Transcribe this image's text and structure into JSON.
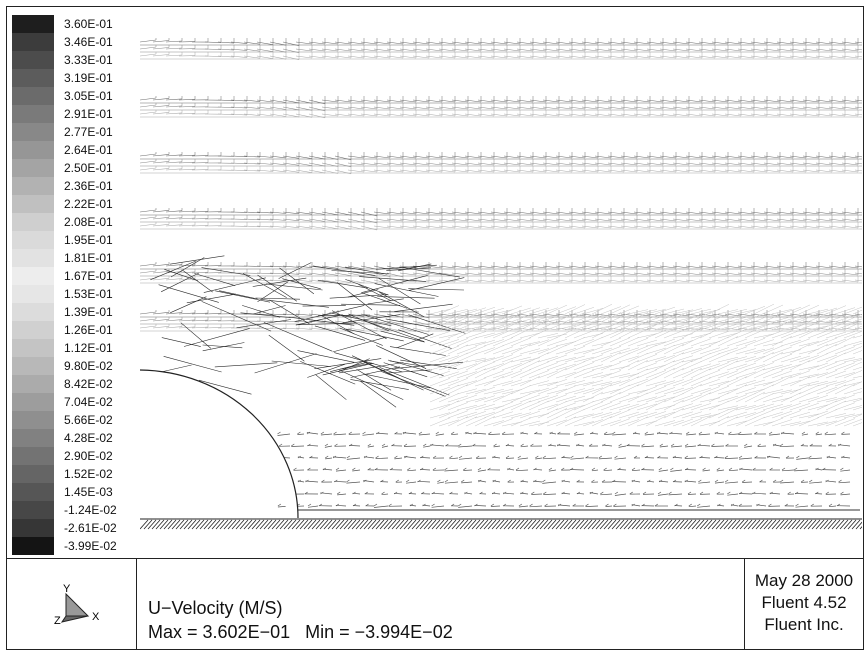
{
  "colorbar": {
    "labels": [
      "3.60E-01",
      "3.46E-01",
      "3.33E-01",
      "3.19E-01",
      "3.05E-01",
      "2.91E-01",
      "2.77E-01",
      "2.64E-01",
      "2.50E-01",
      "2.36E-01",
      "2.22E-01",
      "2.08E-01",
      "1.95E-01",
      "1.81E-01",
      "1.67E-01",
      "1.53E-01",
      "1.39E-01",
      "1.26E-01",
      "1.12E-01",
      "9.80E-02",
      "8.42E-02",
      "7.04E-02",
      "5.66E-02",
      "4.28E-02",
      "2.90E-02",
      "1.52E-02",
      "1.45E-03",
      "-1.24E-02",
      "-2.61E-02",
      "-3.99E-02"
    ],
    "shades": [
      "#1e1e1e",
      "#3c3c3c",
      "#4c4c4c",
      "#5c5c5c",
      "#6b6b6b",
      "#7a7a7a",
      "#888888",
      "#969696",
      "#a4a4a4",
      "#b2b2b2",
      "#c0c0c0",
      "#cfcfcf",
      "#dadada",
      "#e2e2e2",
      "#ededed",
      "#e6e6e6",
      "#dcdcdc",
      "#d0d0d0",
      "#c4c4c4",
      "#b8b8b8",
      "#ababab",
      "#9d9d9d",
      "#8f8f8f",
      "#818181",
      "#737373",
      "#656565",
      "#565656",
      "#474747",
      "#363636",
      "#141414"
    ]
  },
  "footer": {
    "axes": {
      "y_label": "Y",
      "x_label": "X",
      "z_label": "Z"
    },
    "variable_title": "U−Velocity (M/S)",
    "minmax": "Max = 3.602E−01   Min = −3.994E−02",
    "date": "May 28 2000",
    "software": "Fluent 4.52",
    "company": "Fluent Inc."
  }
}
